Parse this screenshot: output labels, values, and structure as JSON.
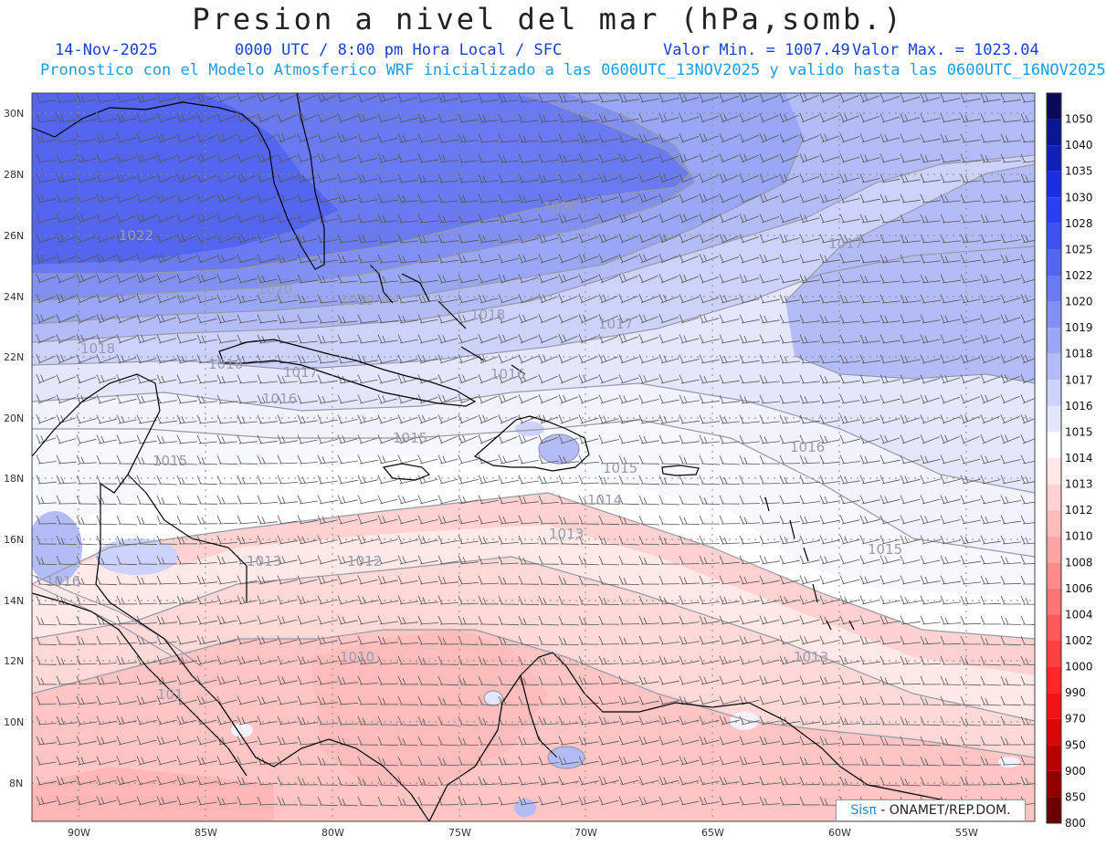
{
  "header": {
    "title": "Presion a nivel del mar (hPa,somb.)",
    "date": "14-Nov-2025",
    "time_info": "0000 UTC / 8:00 pm Hora Local / SFC",
    "value_min": "Valor Min. = 1007.49",
    "value_max": "Valor Max. = 1023.04",
    "forecast_info": "Pronostico con el Modelo Atmosferico WRF inicializado a las 0600UTC_13NOV2025 y valido hasta las  0600UTC_16NOV2025"
  },
  "map": {
    "lat_labels": [
      "30N",
      "28N",
      "26N",
      "24N",
      "22N",
      "20N",
      "18N",
      "16N",
      "14N",
      "12N",
      "10N",
      "8N"
    ],
    "lon_labels": [
      "90W",
      "85W",
      "80W",
      "75W",
      "70W",
      "65W",
      "60W",
      "55W"
    ],
    "contour_labels": [
      "1022",
      "1020",
      "1020",
      "1019",
      "1018",
      "1018",
      "1017",
      "1017",
      "1017",
      "1016",
      "1016",
      "1016",
      "1016",
      "1015",
      "1015",
      "1015",
      "1015",
      "1014",
      "1013",
      "1013",
      "1013",
      "1012",
      "1010",
      "101",
      "1016"
    ]
  },
  "colorbar": {
    "levels": [
      "1050",
      "1040",
      "1035",
      "1030",
      "1028",
      "1025",
      "1022",
      "1020",
      "1019",
      "1018",
      "1017",
      "1016",
      "1015",
      "1014",
      "1013",
      "1012",
      "1010",
      "1008",
      "1006",
      "1004",
      "1002",
      "1000",
      "990",
      "970",
      "950",
      "900",
      "850",
      "800"
    ],
    "colors": [
      "#0a0a5a",
      "#0a1890",
      "#1020b8",
      "#1a2ee0",
      "#2a40f0",
      "#3e52f0",
      "#5466f0",
      "#6a7af2",
      "#8290f4",
      "#9aa6f6",
      "#b4bcf8",
      "#cdd2fa",
      "#e4e7fc",
      "#ffffff",
      "#ffe8e8",
      "#ffd2d2",
      "#ffbcbc",
      "#ffa4a4",
      "#ff8c8c",
      "#ff7474",
      "#ff5a5a",
      "#ff4040",
      "#ff2828",
      "#f01414",
      "#d80808",
      "#b80000",
      "#900000",
      "#6a0000"
    ]
  },
  "credit": {
    "logo": "Sisπ",
    "text": " - ONAMET/REP.DOM."
  }
}
